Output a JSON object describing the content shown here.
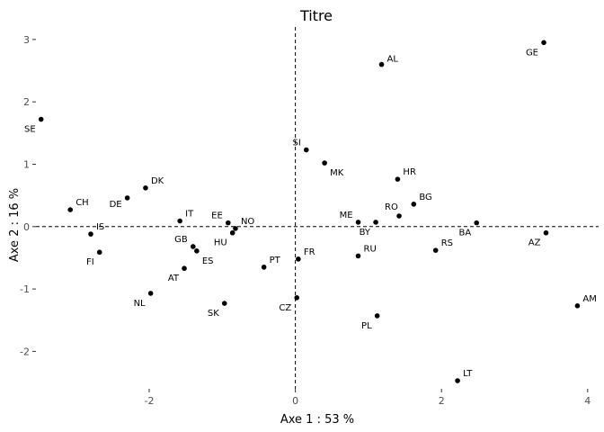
{
  "chart_data": {
    "type": "scatter",
    "title": "Titre",
    "xlabel": "Axe 1 : 53 %",
    "ylabel": "Axe 2 : 16 %",
    "xlim": [
      -3.55,
      4.15
    ],
    "ylim": [
      -2.6,
      3.2
    ],
    "xticks": [
      -2,
      0,
      2,
      4
    ],
    "yticks": [
      -2,
      -1,
      0,
      1,
      2,
      3
    ],
    "reference_lines": {
      "x": 0,
      "y": 0,
      "style": "dashed"
    },
    "grid": false,
    "points": [
      {
        "label": "GE",
        "x": 3.4,
        "y": 2.95,
        "anchor": "end",
        "dx": -6,
        "dy": 14
      },
      {
        "label": "AL",
        "x": 1.18,
        "y": 2.6,
        "anchor": "start",
        "dx": 6,
        "dy": -3
      },
      {
        "label": "SE",
        "x": -3.48,
        "y": 1.72,
        "anchor": "end",
        "dx": -6,
        "dy": 14
      },
      {
        "label": "SI",
        "x": 0.15,
        "y": 1.23,
        "anchor": "end",
        "dx": -6,
        "dy": -5
      },
      {
        "label": "MK",
        "x": 0.4,
        "y": 1.02,
        "anchor": "start",
        "dx": 6,
        "dy": 14
      },
      {
        "label": "HR",
        "x": 1.4,
        "y": 0.76,
        "anchor": "start",
        "dx": 6,
        "dy": -5
      },
      {
        "label": "DK",
        "x": -2.05,
        "y": 0.62,
        "anchor": "start",
        "dx": 6,
        "dy": -5
      },
      {
        "label": "DE",
        "x": -2.3,
        "y": 0.46,
        "anchor": "end",
        "dx": -6,
        "dy": 10
      },
      {
        "label": "BG",
        "x": 1.62,
        "y": 0.36,
        "anchor": "start",
        "dx": 6,
        "dy": -5
      },
      {
        "label": "CH",
        "x": -3.08,
        "y": 0.27,
        "anchor": "start",
        "dx": 6,
        "dy": -5
      },
      {
        "label": "RO",
        "x": 1.42,
        "y": 0.17,
        "anchor": "start",
        "dx": -16,
        "dy": -7
      },
      {
        "label": "IT",
        "x": -1.58,
        "y": 0.09,
        "anchor": "start",
        "dx": 6,
        "dy": -5
      },
      {
        "label": "EE",
        "x": -0.92,
        "y": 0.06,
        "anchor": "end",
        "dx": -6,
        "dy": -5
      },
      {
        "label": "ME",
        "x": 0.86,
        "y": 0.07,
        "anchor": "end",
        "dx": -6,
        "dy": -5
      },
      {
        "label": "BY",
        "x": 1.1,
        "y": 0.07,
        "anchor": "end",
        "dx": -6,
        "dy": 14
      },
      {
        "label": "BA",
        "x": 2.48,
        "y": 0.06,
        "anchor": "end",
        "dx": -6,
        "dy": 14
      },
      {
        "label": "NO",
        "x": -0.82,
        "y": -0.03,
        "anchor": "start",
        "dx": 6,
        "dy": -5
      },
      {
        "label": "HU",
        "x": -0.86,
        "y": -0.1,
        "anchor": "end",
        "dx": -6,
        "dy": 14
      },
      {
        "label": "IS",
        "x": -2.8,
        "y": -0.12,
        "anchor": "start",
        "dx": 6,
        "dy": -5
      },
      {
        "label": "AZ",
        "x": 3.43,
        "y": -0.1,
        "anchor": "end",
        "dx": -6,
        "dy": 14
      },
      {
        "label": "GB",
        "x": -1.4,
        "y": -0.32,
        "anchor": "end",
        "dx": -6,
        "dy": -5
      },
      {
        "label": "ES",
        "x": -1.35,
        "y": -0.39,
        "anchor": "start",
        "dx": 6,
        "dy": 14
      },
      {
        "label": "RS",
        "x": 1.92,
        "y": -0.38,
        "anchor": "start",
        "dx": 6,
        "dy": -5
      },
      {
        "label": "FI",
        "x": -2.68,
        "y": -0.41,
        "anchor": "end",
        "dx": -6,
        "dy": 14
      },
      {
        "label": "RU",
        "x": 0.86,
        "y": -0.47,
        "anchor": "start",
        "dx": 6,
        "dy": -5
      },
      {
        "label": "FR",
        "x": 0.04,
        "y": -0.52,
        "anchor": "start",
        "dx": 6,
        "dy": -5
      },
      {
        "label": "PT",
        "x": -0.43,
        "y": -0.65,
        "anchor": "start",
        "dx": 6,
        "dy": -5
      },
      {
        "label": "AT",
        "x": -1.52,
        "y": -0.67,
        "anchor": "end",
        "dx": -6,
        "dy": 14
      },
      {
        "label": "NL",
        "x": -1.98,
        "y": -1.07,
        "anchor": "end",
        "dx": -6,
        "dy": 14
      },
      {
        "label": "CZ",
        "x": 0.02,
        "y": -1.14,
        "anchor": "end",
        "dx": -6,
        "dy": 14
      },
      {
        "label": "SK",
        "x": -0.97,
        "y": -1.23,
        "anchor": "end",
        "dx": -6,
        "dy": 14
      },
      {
        "label": "AM",
        "x": 3.86,
        "y": -1.27,
        "anchor": "start",
        "dx": 6,
        "dy": -5
      },
      {
        "label": "PL",
        "x": 1.12,
        "y": -1.43,
        "anchor": "end",
        "dx": -6,
        "dy": 14
      },
      {
        "label": "LT",
        "x": 2.22,
        "y": -2.47,
        "anchor": "start",
        "dx": 6,
        "dy": -5
      }
    ]
  }
}
